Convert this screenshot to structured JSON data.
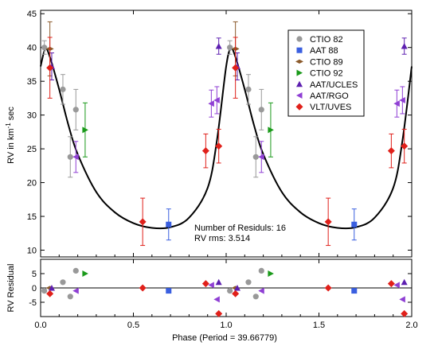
{
  "chart_data": {
    "type": "scatter",
    "xlabel": "Phase (Period = 39.66779)",
    "xlim": [
      0,
      2
    ],
    "x_ticks": [
      "0.0",
      "0.5",
      "1.0",
      "1.5",
      "2.0"
    ],
    "x_tick_values": [
      0,
      0.5,
      1.0,
      1.5,
      2.0
    ],
    "top_panel": {
      "ylabel_parts": [
        "RV in km",
        "-1",
        "sec"
      ],
      "ylim": [
        9,
        45.5
      ],
      "y_ticks": [
        10,
        15,
        20,
        25,
        30,
        35,
        40,
        45
      ],
      "curve_style": {
        "color": "#000000"
      },
      "curve": {
        "x": [
          0.0,
          0.025,
          0.05,
          0.1,
          0.15,
          0.2,
          0.3,
          0.4,
          0.5,
          0.6,
          0.7,
          0.8,
          0.9,
          0.95,
          1.0,
          1.025,
          1.05,
          1.1,
          1.15,
          1.2,
          1.3,
          1.4,
          1.5,
          1.6,
          1.7,
          1.8,
          1.9,
          1.95,
          2.0
        ],
        "y": [
          37.2,
          39.8,
          38.6,
          33.8,
          28.5,
          24.2,
          18.6,
          15.6,
          14.0,
          13.3,
          13.4,
          14.8,
          19.2,
          26.2,
          37.2,
          39.8,
          38.6,
          33.8,
          28.5,
          24.2,
          18.6,
          15.6,
          14.0,
          13.3,
          13.4,
          14.8,
          19.2,
          26.2,
          37.2
        ]
      },
      "annotation": [
        "Number of Residuls: 16",
        "RV rms: 3.514"
      ]
    },
    "bottom_panel": {
      "ylabel": "RV Residual",
      "ylim": [
        -10,
        10
      ],
      "y_ticks": [
        -5,
        0,
        5
      ]
    },
    "legend_position": "top-right",
    "series": [
      {
        "name": "CTIO 82",
        "marker": "circle",
        "color": "#999999",
        "points": [
          {
            "x": 0.02,
            "y": 40,
            "err": 1.0,
            "res": -1
          },
          {
            "x": 0.12,
            "y": 33.8,
            "err": 2.2,
            "res": 2
          },
          {
            "x": 0.16,
            "y": 23.8,
            "err": 3.0,
            "res": -3
          },
          {
            "x": 0.19,
            "y": 30.8,
            "err": 3.0,
            "res": 6
          }
        ]
      },
      {
        "name": "AAT 88",
        "marker": "square",
        "color": "#3a5fe0",
        "points": [
          {
            "x": 0.69,
            "y": 13.8,
            "err": 2.3,
            "res": -1
          }
        ]
      },
      {
        "name": "CTIO 89",
        "marker": "diamond-small",
        "color": "#8b5a2b",
        "points": [
          {
            "x": 0.05,
            "y": 39.8,
            "err": 4.0,
            "res": 0
          }
        ]
      },
      {
        "name": "CTIO 92",
        "marker": "triangle-right",
        "color": "#1a9a1a",
        "points": [
          {
            "x": 0.24,
            "y": 27.8,
            "err": 4.0,
            "res": 5
          }
        ]
      },
      {
        "name": "AAT/UCLES",
        "marker": "triangle-up",
        "color": "#5d1fb0",
        "points": [
          {
            "x": 0.06,
            "y": 37.2,
            "err": 2.0,
            "res": 0
          },
          {
            "x": 0.96,
            "y": 40.2,
            "err": 1.2,
            "res": 2
          }
        ]
      },
      {
        "name": "AAT/RGO",
        "marker": "triangle-left",
        "color": "#8f3fd4",
        "points": [
          {
            "x": 0.19,
            "y": 23.8,
            "err": 2.3,
            "res": -1
          },
          {
            "x": 0.92,
            "y": 31.7,
            "err": 2.0,
            "res": 1
          },
          {
            "x": 0.95,
            "y": 32.2,
            "err": 2.0,
            "res": -4
          }
        ]
      },
      {
        "name": "VLT/UVES",
        "marker": "diamond",
        "color": "#e0201a",
        "points": [
          {
            "x": 0.05,
            "y": 37.0,
            "err": 4.5,
            "res": -2
          },
          {
            "x": 0.55,
            "y": 14.2,
            "err": 3.5,
            "res": 0
          },
          {
            "x": 0.89,
            "y": 24.7,
            "err": 2.5,
            "res": 1.5
          },
          {
            "x": 0.96,
            "y": 25.4,
            "err": 2.5,
            "res": -9
          }
        ]
      }
    ]
  }
}
